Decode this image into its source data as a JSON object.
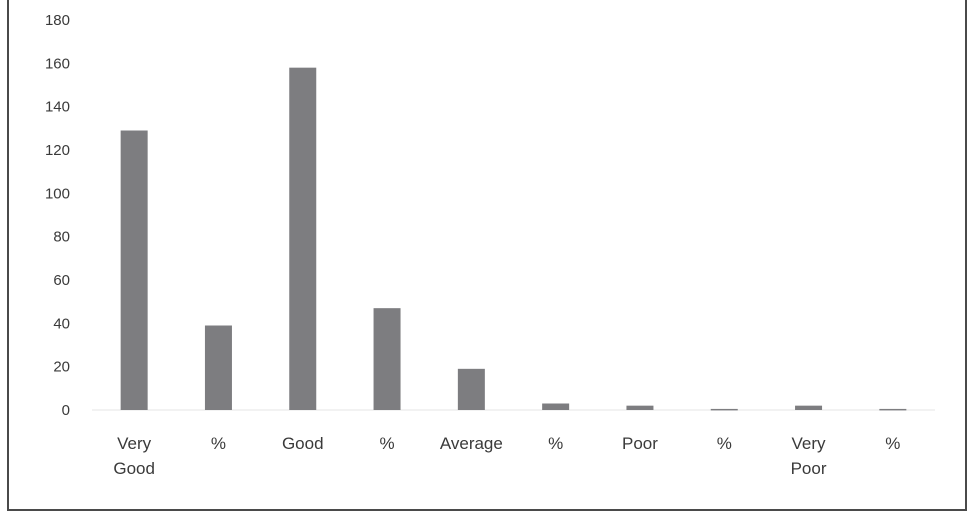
{
  "chart_data": {
    "type": "bar",
    "categories": [
      "Very Good",
      "%",
      "Good",
      "%",
      "Average",
      "%",
      "Poor",
      "%",
      "Very Poor",
      "%"
    ],
    "values": [
      129,
      39,
      158,
      47,
      19,
      3,
      2,
      0.5,
      2,
      0.5
    ],
    "ylim": [
      0,
      180
    ],
    "yticks": [
      "0",
      "20",
      "40",
      "60",
      "80",
      "100",
      "120",
      "140",
      "160",
      "180"
    ],
    "grid": false,
    "legend": "none",
    "bar_color": "#7d7d80"
  }
}
